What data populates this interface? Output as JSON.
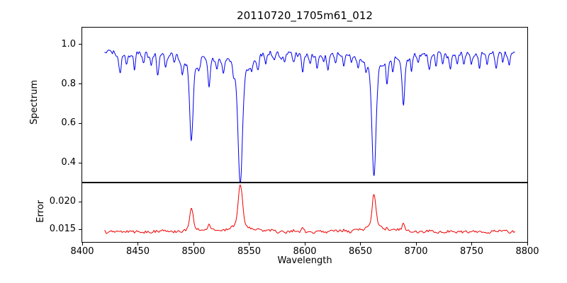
{
  "chart_data": {
    "type": "line",
    "title": "20110720_1705m61_012",
    "xlabel": "Wavelength",
    "legend": "none",
    "grid": false,
    "xlim": [
      8400,
      8800
    ],
    "x_data_range": [
      8420,
      8789
    ],
    "x_ticks": [
      {
        "v": 8400,
        "label": "8400"
      },
      {
        "v": 8450,
        "label": "8450"
      },
      {
        "v": 8500,
        "label": "8500"
      },
      {
        "v": 8550,
        "label": "8550"
      },
      {
        "v": 8600,
        "label": "8600"
      },
      {
        "v": 8650,
        "label": "8650"
      },
      {
        "v": 8700,
        "label": "8700"
      },
      {
        "v": 8750,
        "label": "8750"
      },
      {
        "v": 8800,
        "label": "8800"
      }
    ],
    "panels": [
      {
        "name": "spectrum",
        "ylabel": "Spectrum",
        "color": "#0000ee",
        "ylim": [
          0.304,
          1.085
        ],
        "y_ticks": [
          {
            "v": 0.4,
            "label": "0.4"
          },
          {
            "v": 0.6,
            "label": "0.6"
          },
          {
            "v": 0.8,
            "label": "0.8"
          },
          {
            "v": 1.0,
            "label": "1.0"
          }
        ],
        "continuum": 0.975,
        "noise_amp": 0.014,
        "absorption_lines": [
          {
            "c": 8434,
            "d": 0.11,
            "w": 0.9
          },
          {
            "c": 8440,
            "d": 0.06,
            "w": 0.8
          },
          {
            "c": 8447,
            "d": 0.09,
            "w": 0.8
          },
          {
            "c": 8455,
            "d": 0.05,
            "w": 0.8
          },
          {
            "c": 8462,
            "d": 0.07,
            "w": 0.8
          },
          {
            "c": 8468,
            "d": 0.11,
            "w": 0.9
          },
          {
            "c": 8475,
            "d": 0.06,
            "w": 0.8
          },
          {
            "c": 8483,
            "d": 0.05,
            "w": 0.8
          },
          {
            "c": 8490,
            "d": 0.08,
            "w": 0.8
          },
          {
            "c": 8498.1,
            "d": 0.45,
            "w": 1.4
          },
          {
            "c": 8505,
            "d": 0.06,
            "w": 0.8
          },
          {
            "c": 8514,
            "d": 0.16,
            "w": 1.0
          },
          {
            "c": 8521,
            "d": 0.05,
            "w": 0.8
          },
          {
            "c": 8527,
            "d": 0.07,
            "w": 0.8
          },
          {
            "c": 8536,
            "d": 0.05,
            "w": 0.8
          },
          {
            "c": 8542.1,
            "d": 0.66,
            "w": 1.9
          },
          {
            "c": 8552,
            "d": 0.05,
            "w": 0.8
          },
          {
            "c": 8558,
            "d": 0.06,
            "w": 0.8
          },
          {
            "c": 8565,
            "d": 0.05,
            "w": 0.8
          },
          {
            "c": 8573,
            "d": 0.04,
            "w": 0.8
          },
          {
            "c": 8582,
            "d": 0.06,
            "w": 0.8
          },
          {
            "c": 8590,
            "d": 0.05,
            "w": 0.8
          },
          {
            "c": 8598,
            "d": 0.1,
            "w": 0.9
          },
          {
            "c": 8605,
            "d": 0.05,
            "w": 0.8
          },
          {
            "c": 8611,
            "d": 0.07,
            "w": 0.8
          },
          {
            "c": 8617,
            "d": 0.05,
            "w": 0.8
          },
          {
            "c": 8621,
            "d": 0.09,
            "w": 0.9
          },
          {
            "c": 8628,
            "d": 0.05,
            "w": 0.8
          },
          {
            "c": 8635,
            "d": 0.06,
            "w": 0.8
          },
          {
            "c": 8642,
            "d": 0.05,
            "w": 0.8
          },
          {
            "c": 8648,
            "d": 0.07,
            "w": 0.8
          },
          {
            "c": 8655,
            "d": 0.05,
            "w": 0.8
          },
          {
            "c": 8662.2,
            "d": 0.65,
            "w": 1.7
          },
          {
            "c": 8674,
            "d": 0.12,
            "w": 0.9
          },
          {
            "c": 8679,
            "d": 0.07,
            "w": 0.8
          },
          {
            "c": 8688.6,
            "d": 0.26,
            "w": 1.1
          },
          {
            "c": 8696,
            "d": 0.06,
            "w": 0.8
          },
          {
            "c": 8702,
            "d": 0.05,
            "w": 0.8
          },
          {
            "c": 8712,
            "d": 0.09,
            "w": 0.9
          },
          {
            "c": 8718,
            "d": 0.06,
            "w": 0.8
          },
          {
            "c": 8724,
            "d": 0.05,
            "w": 0.8
          },
          {
            "c": 8731,
            "d": 0.08,
            "w": 0.9
          },
          {
            "c": 8737,
            "d": 0.05,
            "w": 0.8
          },
          {
            "c": 8743,
            "d": 0.06,
            "w": 0.8
          },
          {
            "c": 8750,
            "d": 0.05,
            "w": 0.8
          },
          {
            "c": 8757,
            "d": 0.08,
            "w": 0.8
          },
          {
            "c": 8764,
            "d": 0.06,
            "w": 0.8
          },
          {
            "c": 8772,
            "d": 0.08,
            "w": 0.9
          },
          {
            "c": 8778,
            "d": 0.05,
            "w": 0.8
          },
          {
            "c": 8784,
            "d": 0.06,
            "w": 0.8
          }
        ]
      },
      {
        "name": "error",
        "ylabel": "Error",
        "color": "#ee0000",
        "ylim": [
          0.01275,
          0.0234
        ],
        "y_ticks": [
          {
            "v": 0.015,
            "label": "0.015"
          },
          {
            "v": 0.02,
            "label": "0.020"
          }
        ],
        "baseline": 0.0146,
        "noise_amp": 0.0003,
        "error_peaks": [
          {
            "c": 8498.1,
            "h": 0.0043,
            "w": 1.4
          },
          {
            "c": 8514,
            "h": 0.0012,
            "w": 1.0
          },
          {
            "c": 8542.1,
            "h": 0.0084,
            "w": 1.9
          },
          {
            "c": 8598,
            "h": 0.0004,
            "w": 0.9
          },
          {
            "c": 8662.2,
            "h": 0.007,
            "w": 1.6
          },
          {
            "c": 8674,
            "h": 0.0004,
            "w": 0.9
          },
          {
            "c": 8688.6,
            "h": 0.0015,
            "w": 1.0
          }
        ]
      }
    ]
  }
}
